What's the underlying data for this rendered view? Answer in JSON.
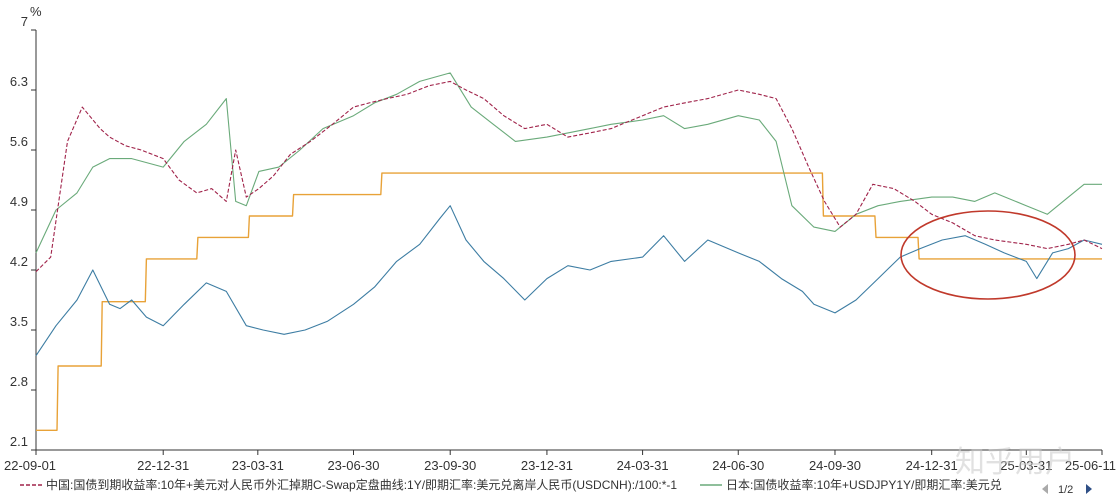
{
  "chart_data": {
    "type": "line",
    "ylabel": "%",
    "ylim": [
      2.1,
      7.0
    ],
    "yticks": [
      2.1,
      2.8,
      3.5,
      4.2,
      4.9,
      5.6,
      6.3,
      7
    ],
    "ytick_labels": [
      "2.1",
      "2.8",
      "3.5",
      "4.2",
      "4.9",
      "5.6",
      "6.3",
      "7"
    ],
    "xlim": [
      "2022-09-01",
      "2025-06-11"
    ],
    "xticks": [
      "2022-09-01",
      "2022-12-31",
      "2023-03-31",
      "2023-06-30",
      "2023-09-30",
      "2023-12-31",
      "2024-03-31",
      "2024-06-30",
      "2024-09-30",
      "2024-12-31",
      "2025-03-31",
      "2025-06-11"
    ],
    "xtick_labels": [
      "22-09-01",
      "22-12-31",
      "23-03-31",
      "23-06-30",
      "23-09-30",
      "23-12-31",
      "24-03-31",
      "24-06-30",
      "24-09-30",
      "24-12-31",
      "25-03-31",
      "25-06-11"
    ],
    "grid": false,
    "legend_position": "bottom",
    "series": [
      {
        "name": "中国:国债到期收益率:10年+美元对人民币外汇掉期C-Swap定盘曲线:1Y/即期汇率:美元兑离岸人民币(USDCNH):/100:*-1",
        "color": "#a0234a",
        "style": "dashed",
        "x": [
          "2022-09-01",
          "2022-09-15",
          "2022-10-01",
          "2022-10-15",
          "2022-11-01",
          "2022-11-10",
          "2022-11-25",
          "2022-12-10",
          "2022-12-31",
          "2023-01-15",
          "2023-02-01",
          "2023-02-15",
          "2023-03-01",
          "2023-03-10",
          "2023-03-20",
          "2023-04-01",
          "2023-04-15",
          "2023-05-01",
          "2023-05-20",
          "2023-06-10",
          "2023-06-30",
          "2023-07-15",
          "2023-08-01",
          "2023-08-20",
          "2023-09-10",
          "2023-09-30",
          "2023-10-15",
          "2023-11-01",
          "2023-11-20",
          "2023-12-10",
          "2023-12-31",
          "2024-01-20",
          "2024-02-10",
          "2024-03-01",
          "2024-03-31",
          "2024-04-20",
          "2024-05-10",
          "2024-06-01",
          "2024-06-30",
          "2024-07-20",
          "2024-08-05",
          "2024-08-20",
          "2024-09-05",
          "2024-09-20",
          "2024-10-05",
          "2024-10-20",
          "2024-11-05",
          "2024-11-25",
          "2024-12-15",
          "2024-12-31",
          "2025-01-20",
          "2025-02-10",
          "2025-03-01",
          "2025-03-31",
          "2025-04-20",
          "2025-05-10",
          "2025-05-25",
          "2025-06-11"
        ],
        "y": [
          4.18,
          4.35,
          5.7,
          6.1,
          5.85,
          5.75,
          5.65,
          5.6,
          5.5,
          5.25,
          5.1,
          5.15,
          5.0,
          5.6,
          5.05,
          5.15,
          5.3,
          5.55,
          5.7,
          5.9,
          6.1,
          6.15,
          6.2,
          6.25,
          6.35,
          6.4,
          6.3,
          6.2,
          6.0,
          5.85,
          5.9,
          5.75,
          5.8,
          5.85,
          6.0,
          6.1,
          6.15,
          6.2,
          6.3,
          6.25,
          6.2,
          5.85,
          5.4,
          5.0,
          4.7,
          4.85,
          5.2,
          5.15,
          5.0,
          4.85,
          4.75,
          4.6,
          4.55,
          4.5,
          4.45,
          4.5,
          4.55,
          4.45
        ]
      },
      {
        "name": "日本:国债收益率:10年+USDJPY1Y/即期汇率:美元兑",
        "color": "#6aaa7a",
        "style": "solid",
        "x": [
          "2022-09-01",
          "2022-09-20",
          "2022-10-10",
          "2022-10-25",
          "2022-11-10",
          "2022-12-01",
          "2022-12-31",
          "2023-01-20",
          "2023-02-10",
          "2023-03-01",
          "2023-03-10",
          "2023-03-20",
          "2023-04-01",
          "2023-04-20",
          "2023-05-10",
          "2023-06-01",
          "2023-06-30",
          "2023-07-20",
          "2023-08-10",
          "2023-09-01",
          "2023-09-30",
          "2023-10-20",
          "2023-11-10",
          "2023-12-01",
          "2023-12-31",
          "2024-01-20",
          "2024-02-10",
          "2024-03-01",
          "2024-03-31",
          "2024-04-20",
          "2024-05-10",
          "2024-06-01",
          "2024-06-30",
          "2024-07-20",
          "2024-08-05",
          "2024-08-20",
          "2024-09-10",
          "2024-09-30",
          "2024-10-20",
          "2024-11-10",
          "2024-12-01",
          "2024-12-31",
          "2025-01-20",
          "2025-02-10",
          "2025-03-01",
          "2025-03-31",
          "2025-04-20",
          "2025-05-10",
          "2025-05-25",
          "2025-06-11"
        ],
        "y": [
          4.4,
          4.9,
          5.1,
          5.4,
          5.5,
          5.5,
          5.4,
          5.7,
          5.9,
          6.2,
          5.0,
          4.95,
          5.35,
          5.4,
          5.6,
          5.85,
          6.0,
          6.15,
          6.25,
          6.4,
          6.5,
          6.1,
          5.9,
          5.7,
          5.75,
          5.8,
          5.85,
          5.9,
          5.95,
          6.0,
          5.85,
          5.9,
          6.0,
          5.95,
          5.7,
          4.95,
          4.7,
          4.65,
          4.85,
          4.95,
          5.0,
          5.05,
          5.05,
          5.0,
          5.1,
          4.95,
          4.85,
          5.05,
          5.2,
          5.2
        ]
      },
      {
        "name": "",
        "color": "#e8a238",
        "style": "step",
        "x": [
          "2022-09-01",
          "2022-09-21",
          "2022-09-22",
          "2022-11-02",
          "2022-11-03",
          "2022-12-14",
          "2022-12-15",
          "2023-02-01",
          "2023-02-02",
          "2023-03-22",
          "2023-03-23",
          "2023-05-03",
          "2023-05-04",
          "2023-07-26",
          "2023-07-27",
          "2024-09-18",
          "2024-09-19",
          "2024-11-07",
          "2024-11-08",
          "2024-12-18",
          "2024-12-19",
          "2025-06-11"
        ],
        "y": [
          2.33,
          2.33,
          3.08,
          3.08,
          3.83,
          3.83,
          4.33,
          4.33,
          4.58,
          4.58,
          4.83,
          4.83,
          5.08,
          5.08,
          5.33,
          5.33,
          4.83,
          4.83,
          4.58,
          4.58,
          4.33,
          4.33
        ]
      },
      {
        "name": "",
        "color": "#3d7da3",
        "style": "solid",
        "x": [
          "2022-09-01",
          "2022-09-20",
          "2022-10-10",
          "2022-10-25",
          "2022-11-10",
          "2022-11-20",
          "2022-12-01",
          "2022-12-15",
          "2022-12-31",
          "2023-01-20",
          "2023-02-10",
          "2023-03-01",
          "2023-03-20",
          "2023-04-05",
          "2023-04-25",
          "2023-05-15",
          "2023-06-05",
          "2023-06-30",
          "2023-07-20",
          "2023-08-10",
          "2023-09-01",
          "2023-09-20",
          "2023-09-30",
          "2023-10-15",
          "2023-11-01",
          "2023-11-20",
          "2023-12-10",
          "2023-12-31",
          "2024-01-20",
          "2024-02-10",
          "2024-03-01",
          "2024-03-31",
          "2024-04-20",
          "2024-05-10",
          "2024-06-01",
          "2024-06-30",
          "2024-07-20",
          "2024-08-10",
          "2024-08-30",
          "2024-09-10",
          "2024-09-30",
          "2024-10-20",
          "2024-11-10",
          "2024-12-01",
          "2024-12-20",
          "2025-01-10",
          "2025-02-01",
          "2025-02-20",
          "2025-03-10",
          "2025-03-31",
          "2025-04-10",
          "2025-04-25",
          "2025-05-10",
          "2025-05-25",
          "2025-06-11"
        ],
        "y": [
          3.2,
          3.55,
          3.85,
          4.2,
          3.8,
          3.75,
          3.85,
          3.65,
          3.55,
          3.8,
          4.05,
          3.95,
          3.55,
          3.5,
          3.45,
          3.5,
          3.6,
          3.8,
          4.0,
          4.3,
          4.5,
          4.8,
          4.95,
          4.55,
          4.3,
          4.1,
          3.85,
          4.1,
          4.25,
          4.2,
          4.3,
          4.35,
          4.6,
          4.3,
          4.55,
          4.4,
          4.3,
          4.1,
          3.95,
          3.8,
          3.7,
          3.85,
          4.1,
          4.35,
          4.45,
          4.55,
          4.6,
          4.5,
          4.4,
          4.3,
          4.1,
          4.4,
          4.45,
          4.55,
          4.5
        ]
      }
    ]
  },
  "pager": {
    "label": "1/2",
    "prev_icon": "triangle-left-icon",
    "next_icon": "triangle-right-icon"
  },
  "watermark_text": "知乎用户"
}
